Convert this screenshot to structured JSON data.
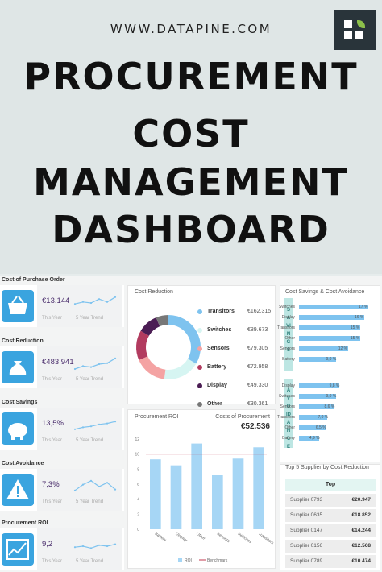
{
  "site": "WWW.DATAPINE.COM",
  "title_lines": [
    "PROCUREMENT",
    "COST",
    "MANAGEMENT",
    "DASHBOARD"
  ],
  "kpis": [
    {
      "label": "Cost of Purchase Order",
      "value": "€13.144",
      "this_year": "This Year",
      "trend": "5 Year Trend",
      "icon": "basket-icon"
    },
    {
      "label": "Cost Reduction",
      "value": "€483.941",
      "this_year": "This Year",
      "trend": "5 Year Trend",
      "icon": "money-bag-icon"
    },
    {
      "label": "Cost Savings",
      "value": "13,5%",
      "this_year": "This Year",
      "trend": "5 Year Trend",
      "icon": "piggy-bank-icon"
    },
    {
      "label": "Cost Avoidance",
      "value": "7,3%",
      "this_year": "This Year",
      "trend": "5 Year Trend",
      "icon": "warning-icon"
    },
    {
      "label": "Procurement ROI",
      "value": "9,2",
      "this_year": "This Year",
      "trend": "5 Year Trend",
      "icon": "trend-chart-icon"
    }
  ],
  "cost_reduction": {
    "title": "Cost Reduction",
    "items": [
      {
        "name": "Transitors",
        "value": "€162.315",
        "color": "#7ec3ef",
        "amount": 162315
      },
      {
        "name": "Switches",
        "value": "€89.673",
        "color": "#d6f5f2",
        "amount": 89673
      },
      {
        "name": "Sensors",
        "value": "€79.305",
        "color": "#f4a3a3",
        "amount": 79305
      },
      {
        "name": "Battery",
        "value": "€72.958",
        "color": "#b23b5f",
        "amount": 72958
      },
      {
        "name": "Display",
        "value": "€49.330",
        "color": "#4b1d54",
        "amount": 49330
      },
      {
        "name": "Other",
        "value": "€30.361",
        "color": "#777777",
        "amount": 30361
      }
    ]
  },
  "procurement_roi": {
    "title": "Procurement ROI",
    "costs_label": "Costs of Procurement",
    "costs_value": "€52.536",
    "legend_roi": "ROI",
    "legend_benchmark": "Benchmark"
  },
  "savings": {
    "title": "Cost Savings & Cost Avoidance",
    "savings_tab": "SAVINGS",
    "avoidance_tab": "AVOIDANCE",
    "savings_rows": [
      {
        "name": "Switches",
        "value": "17 %",
        "pct": 17
      },
      {
        "name": "Display",
        "value": "16 %",
        "pct": 16
      },
      {
        "name": "Transitors",
        "value": "15 %",
        "pct": 15
      },
      {
        "name": "Other",
        "value": "15 %",
        "pct": 15
      },
      {
        "name": "Sensors",
        "value": "12 %",
        "pct": 12
      },
      {
        "name": "Battery",
        "value": "9,0 %",
        "pct": 9.0
      }
    ],
    "avoidance_rows": [
      {
        "name": "Display",
        "value": "9,8 %",
        "pct": 9.8
      },
      {
        "name": "Switches",
        "value": "9,0 %",
        "pct": 9.0
      },
      {
        "name": "Sensors",
        "value": "8,6 %",
        "pct": 8.6
      },
      {
        "name": "Transitors",
        "value": "7,0 %",
        "pct": 7.0
      },
      {
        "name": "Other",
        "value": "6,5 %",
        "pct": 6.5
      },
      {
        "name": "Battery",
        "value": "4,9 %",
        "pct": 4.9
      }
    ]
  },
  "top_suppliers": {
    "title": "Top 5 Supplier by Cost Reduction",
    "header": "Top",
    "rows": [
      {
        "name": "Supplier 0793",
        "value": "€20.947"
      },
      {
        "name": "Supplier 0635",
        "value": "€18.852"
      },
      {
        "name": "Supplier 0147",
        "value": "€14.244"
      },
      {
        "name": "Supplier 0156",
        "value": "€12.568"
      },
      {
        "name": "Supplier 0789",
        "value": "€10.474"
      }
    ]
  },
  "chart_data": {
    "type": "bar",
    "categories": [
      "Battery",
      "Display",
      "Other",
      "Sensors",
      "Switches",
      "Transitors"
    ],
    "values": [
      9.3,
      8.5,
      11.4,
      7.2,
      9.4,
      10.9
    ],
    "benchmark": 10,
    "ylim": [
      0,
      12
    ],
    "yticks": [
      0,
      2,
      4,
      6,
      8,
      10,
      12
    ],
    "colors": {
      "bar": "#a6d6f5",
      "benchmark": "#c0394f"
    }
  }
}
